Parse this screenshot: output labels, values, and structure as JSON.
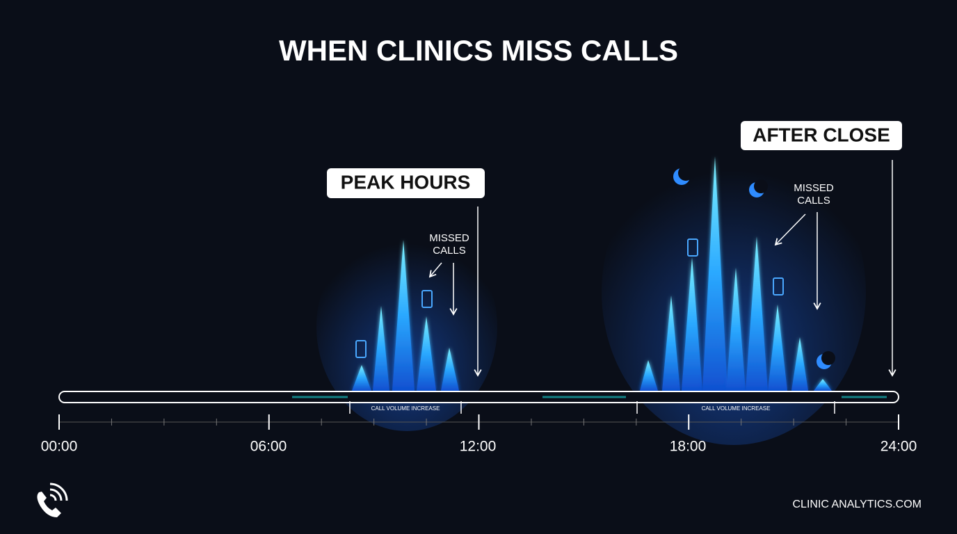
{
  "title": "WHEN CLINICS MISS CALLS",
  "callouts": [
    {
      "label": "PEAK HOURS",
      "note": [
        "MISSED",
        "CALLS"
      ],
      "range_label": "CALL VOLUME INCREASE"
    },
    {
      "label": "AFTER CLOSE",
      "note": [
        "MISSED",
        "CALLS"
      ],
      "range_label": "CALL VOLUME INCREASE"
    }
  ],
  "time_labels": [
    "00:00",
    "06:00",
    "12:00",
    "18:00",
    "24:00"
  ],
  "footer": "CLINIC ANALYTICS.COM"
}
